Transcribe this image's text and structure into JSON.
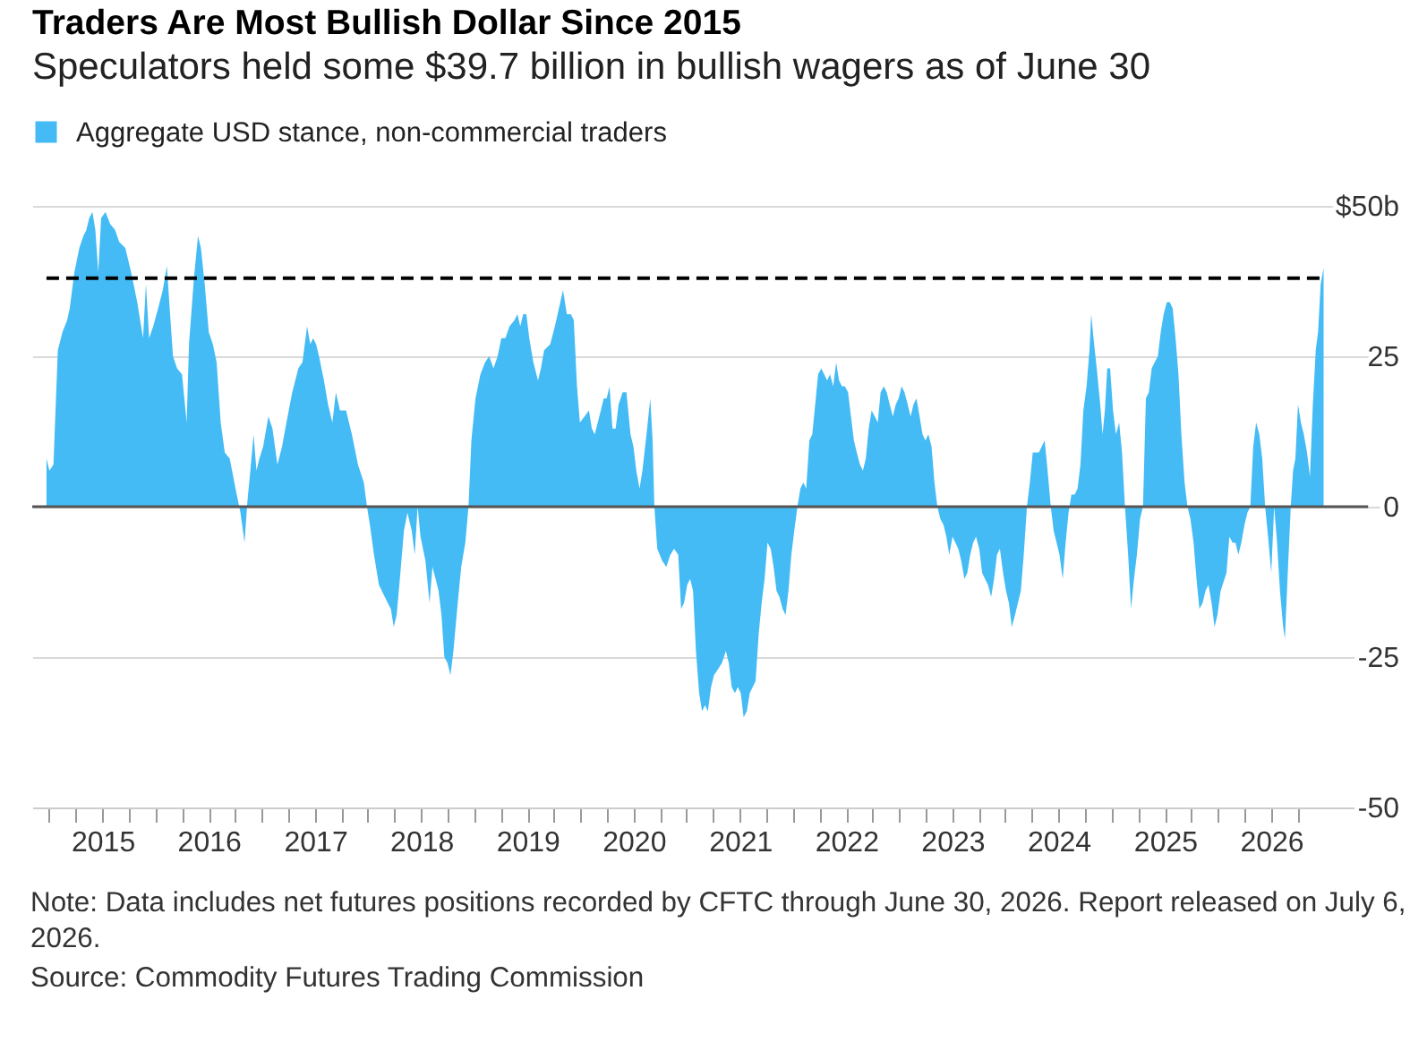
{
  "chart_data": {
    "type": "area",
    "title": "Traders Are Most Bullish Dollar Since 2015",
    "subtitle": "Speculators held some $39.7 billion in bullish wagers as of June 30",
    "annotations": [
      "Note: Data includes net futures positions recorded by CFTC through June 30, 2026. Report released on July 6, 2026.",
      "Source: Commodity Futures Trading Commission"
    ],
    "x": [
      "2014-06-22",
      "2014-07-02",
      "2014-07-16",
      "2014-07-31",
      "2014-08-16",
      "2014-09-01",
      "2014-09-10",
      "2014-09-26",
      "2014-10-13",
      "2014-10-27",
      "2014-11-06",
      "2014-11-16",
      "2014-11-27",
      "2014-12-07",
      "2014-12-17",
      "2014-12-27",
      "2015-01-11",
      "2015-01-27",
      "2015-02-13",
      "2015-02-27",
      "2015-03-20",
      "2015-04-09",
      "2015-04-30",
      "2015-05-20",
      "2015-05-30",
      "2015-06-10",
      "2015-06-24",
      "2015-07-11",
      "2015-07-27",
      "2015-08-10",
      "2015-08-21",
      "2015-08-31",
      "2015-09-14",
      "2015-10-01",
      "2015-10-17",
      "2015-10-25",
      "2015-11-11",
      "2015-11-25",
      "2015-12-05",
      "2015-12-18",
      "2016-01-01",
      "2016-01-15",
      "2016-01-28",
      "2016-02-11",
      "2016-02-25",
      "2016-03-13",
      "2016-04-02",
      "2016-04-19",
      "2016-05-03",
      "2016-05-13",
      "2016-05-23",
      "2016-06-03",
      "2016-06-13",
      "2016-06-23",
      "2016-07-06",
      "2016-07-24",
      "2016-08-07",
      "2016-08-24",
      "2016-09-09",
      "2016-09-24",
      "2016-10-14",
      "2016-11-04",
      "2016-11-18",
      "2016-12-04",
      "2016-12-15",
      "2016-12-25",
      "2017-01-04",
      "2017-01-14",
      "2017-01-31",
      "2017-02-14",
      "2017-03-01",
      "2017-03-13",
      "2017-03-27",
      "2017-04-17",
      "2017-05-07",
      "2017-05-28",
      "2017-06-17",
      "2017-06-28",
      "2017-07-08",
      "2017-07-22",
      "2017-08-08",
      "2017-08-28",
      "2017-09-18",
      "2017-09-28",
      "2017-10-08",
      "2017-10-19",
      "2017-11-02",
      "2017-11-14",
      "2017-11-29",
      "2017-12-09",
      "2017-12-19",
      "2017-12-29",
      "2018-01-15",
      "2018-01-29",
      "2018-02-08",
      "2018-02-19",
      "2018-03-01",
      "2018-03-11",
      "2018-03-21",
      "2018-04-01",
      "2018-04-11",
      "2018-04-21",
      "2018-05-06",
      "2018-05-18",
      "2018-06-01",
      "2018-06-12",
      "2018-06-22",
      "2018-07-06",
      "2018-07-23",
      "2018-08-08",
      "2018-08-22",
      "2018-09-06",
      "2018-09-20",
      "2018-10-03",
      "2018-10-17",
      "2018-10-31",
      "2018-11-17",
      "2018-11-27",
      "2018-12-07",
      "2018-12-17",
      "2018-12-28",
      "2019-01-07",
      "2019-01-21",
      "2019-02-06",
      "2019-02-16",
      "2019-02-27",
      "2019-03-20",
      "2019-04-05",
      "2019-04-19",
      "2019-05-03",
      "2019-05-16",
      "2019-05-30",
      "2019-06-09",
      "2019-06-20",
      "2019-06-30",
      "2019-07-16",
      "2019-07-31",
      "2019-08-10",
      "2019-08-20",
      "2019-09-10",
      "2019-09-20",
      "2019-09-30",
      "2019-10-10",
      "2019-10-20",
      "2019-10-31",
      "2019-11-10",
      "2019-11-24",
      "2019-12-07",
      "2019-12-21",
      "2019-12-31",
      "2020-01-10",
      "2020-01-21",
      "2020-01-31",
      "2020-02-14",
      "2020-02-27",
      "2020-03-06",
      "2020-03-12",
      "2020-03-22",
      "2020-04-08",
      "2020-04-22",
      "2020-05-06",
      "2020-05-19",
      "2020-06-02",
      "2020-06-12",
      "2020-06-22",
      "2020-07-03",
      "2020-07-13",
      "2020-07-23",
      "2020-08-02",
      "2020-08-13",
      "2020-08-23",
      "2020-09-02",
      "2020-09-12",
      "2020-09-23",
      "2020-10-03",
      "2020-10-17",
      "2020-10-30",
      "2020-11-13",
      "2020-11-23",
      "2020-12-03",
      "2020-12-14",
      "2020-12-24",
      "2021-01-03",
      "2021-01-13",
      "2021-01-24",
      "2021-02-03",
      "2021-02-13",
      "2021-02-23",
      "2021-03-06",
      "2021-03-16",
      "2021-03-26",
      "2021-04-05",
      "2021-04-16",
      "2021-04-26",
      "2021-05-06",
      "2021-05-16",
      "2021-05-27",
      "2021-06-06",
      "2021-06-16",
      "2021-06-26",
      "2021-07-06",
      "2021-07-17",
      "2021-07-27",
      "2021-08-06",
      "2021-08-16",
      "2021-08-27",
      "2021-09-06",
      "2021-09-16",
      "2021-09-26",
      "2021-10-07",
      "2021-10-17",
      "2021-10-27",
      "2021-11-06",
      "2021-11-17",
      "2021-11-27",
      "2021-12-07",
      "2021-12-17",
      "2021-12-27",
      "2022-01-07",
      "2022-01-17",
      "2022-01-27",
      "2022-02-06",
      "2022-02-17",
      "2022-02-27",
      "2022-03-09",
      "2022-03-19",
      "2022-03-29",
      "2022-04-09",
      "2022-04-19",
      "2022-04-29",
      "2022-05-10",
      "2022-05-20",
      "2022-05-30",
      "2022-06-10",
      "2022-06-20",
      "2022-06-30",
      "2022-07-10",
      "2022-07-20",
      "2022-07-31",
      "2022-08-10",
      "2022-08-20",
      "2022-08-30",
      "2022-09-10",
      "2022-09-20",
      "2022-09-30",
      "2022-10-10",
      "2022-10-21",
      "2022-10-31",
      "2022-11-10",
      "2022-11-20",
      "2022-12-01",
      "2022-12-11",
      "2022-12-21",
      "2023-01-01",
      "2023-01-11",
      "2023-01-21",
      "2023-01-31",
      "2023-02-11",
      "2023-02-21",
      "2023-03-03",
      "2023-03-13",
      "2023-03-23",
      "2023-04-03",
      "2023-04-13",
      "2023-04-23",
      "2023-05-03",
      "2023-05-14",
      "2023-05-24",
      "2023-06-03",
      "2023-06-13",
      "2023-06-24",
      "2023-07-04",
      "2023-07-14",
      "2023-07-24",
      "2023-08-04",
      "2023-08-14",
      "2023-08-24",
      "2023-09-03",
      "2023-09-14",
      "2023-09-24",
      "2023-10-04",
      "2023-10-14",
      "2023-10-25",
      "2023-11-04",
      "2023-11-14",
      "2023-11-24",
      "2023-12-05",
      "2023-12-15",
      "2023-12-25",
      "2024-01-04",
      "2024-01-15",
      "2024-01-25",
      "2024-02-04",
      "2024-02-14",
      "2024-02-25",
      "2024-03-06",
      "2024-03-16",
      "2024-03-26",
      "2024-04-06",
      "2024-04-16",
      "2024-04-22",
      "2024-05-02",
      "2024-05-11",
      "2024-05-23",
      "2024-05-31",
      "2024-06-08",
      "2024-06-16",
      "2024-06-26",
      "2024-07-06",
      "2024-07-16",
      "2024-07-27",
      "2024-08-06",
      "2024-08-16",
      "2024-08-27",
      "2024-09-06",
      "2024-09-16",
      "2024-09-26",
      "2024-10-07",
      "2024-10-17",
      "2024-10-27",
      "2024-11-06",
      "2024-11-16",
      "2024-11-26",
      "2024-12-07",
      "2024-12-17",
      "2024-12-27",
      "2025-01-07",
      "2025-01-17",
      "2025-01-27",
      "2025-02-06",
      "2025-02-16",
      "2025-02-26",
      "2025-03-09",
      "2025-03-19",
      "2025-03-29",
      "2025-04-09",
      "2025-04-19",
      "2025-04-29",
      "2025-05-10",
      "2025-05-20",
      "2025-05-30",
      "2025-06-10",
      "2025-06-20",
      "2025-06-30",
      "2025-07-11",
      "2025-07-31",
      "2025-08-10",
      "2025-08-21",
      "2025-08-31",
      "2025-09-10",
      "2025-09-20",
      "2025-10-01",
      "2025-10-11",
      "2025-10-21",
      "2025-10-31",
      "2025-11-10",
      "2025-11-21",
      "2025-12-01",
      "2025-12-11",
      "2025-12-21",
      "2026-01-01",
      "2026-01-11",
      "2026-01-21",
      "2026-01-31",
      "2026-02-11",
      "2026-02-17",
      "2026-02-25",
      "2026-03-09",
      "2026-03-17",
      "2026-03-25",
      "2026-04-03",
      "2026-04-13",
      "2026-04-23",
      "2026-05-04",
      "2026-05-14",
      "2026-05-24",
      "2026-06-03",
      "2026-06-11",
      "2026-06-20",
      "2026-06-30"
    ],
    "series": [
      {
        "name": "Aggregate USD stance, non-commercial traders",
        "color": "#44bbf5",
        "values": [
          8,
          6,
          7,
          26,
          29,
          31,
          33,
          39,
          43,
          45,
          46,
          48,
          49,
          46,
          39,
          48,
          49,
          47,
          46,
          44,
          43,
          39,
          34,
          28,
          37,
          28,
          30,
          33,
          36,
          40,
          32,
          25,
          23,
          22,
          14,
          27,
          38,
          45,
          43,
          37,
          29,
          27,
          24,
          14,
          9,
          8,
          3,
          -1,
          -6,
          1,
          6,
          12,
          6,
          8,
          10,
          15,
          13,
          7,
          10,
          14,
          19,
          23,
          24,
          30,
          27,
          28,
          27,
          25,
          21,
          17,
          14,
          19,
          16,
          16,
          12,
          7,
          4,
          0,
          -3,
          -8,
          -13,
          -15,
          -17,
          -20,
          -18,
          -12,
          -4,
          -1,
          -4,
          -8,
          0,
          -5,
          -9,
          -16,
          -10,
          -12,
          -14,
          -18,
          -25,
          -26,
          -28,
          -24,
          -16,
          -10,
          -6,
          0,
          11,
          18,
          22,
          24,
          25,
          23,
          25,
          28,
          28,
          30,
          31,
          32,
          30,
          32,
          32,
          28,
          24,
          21,
          23,
          26,
          27,
          30,
          33,
          36,
          32,
          32,
          31,
          20,
          14,
          15,
          16,
          13,
          12,
          16,
          18,
          18,
          20,
          13,
          13,
          17,
          19,
          19,
          12,
          10,
          6,
          3,
          6,
          12,
          18,
          11,
          0,
          -7,
          -9,
          -10,
          -8,
          -7,
          -8,
          -17,
          -16,
          -13,
          -12,
          -14,
          -24,
          -31,
          -34,
          -33,
          -34,
          -30,
          -28,
          -27,
          -26,
          -24,
          -26,
          -30,
          -31,
          -30,
          -31,
          -35,
          -34,
          -31,
          -30,
          -29,
          -21,
          -16,
          -12,
          -6,
          -7,
          -10,
          -14,
          -15,
          -17,
          -18,
          -14,
          -8,
          -4,
          0,
          3,
          4,
          3,
          11,
          12,
          17,
          22,
          23,
          22,
          21,
          22,
          20,
          24,
          21,
          20,
          20,
          19,
          15,
          11,
          9,
          7,
          6,
          8,
          13,
          16,
          15,
          14,
          19,
          20,
          19,
          17,
          15,
          17,
          18,
          20,
          19,
          17,
          15,
          17,
          18,
          15,
          12,
          11,
          12,
          10,
          4,
          0,
          -2,
          -3,
          -5,
          -8,
          -5,
          -6,
          -7,
          -9,
          -12,
          -11,
          -8,
          -6,
          -5,
          -7,
          -11,
          -12,
          -13,
          -15,
          -12,
          -8,
          -7,
          -11,
          -14,
          -16,
          -20,
          -18,
          -16,
          -14,
          -8,
          0,
          4,
          9,
          9,
          9,
          10,
          11,
          6,
          0,
          -4,
          -6,
          -8,
          -12,
          -6,
          -1,
          2,
          2,
          3,
          7,
          16,
          20,
          26,
          32,
          27,
          23,
          17,
          12,
          16,
          23,
          23,
          16,
          12,
          14,
          9,
          0,
          -8,
          -17,
          -12,
          -8,
          -2,
          0,
          18,
          19,
          23,
          24,
          25,
          29,
          32,
          34,
          34,
          33,
          28,
          22,
          12,
          4,
          0,
          -2,
          -6,
          -12,
          -17,
          -16,
          -14,
          -13,
          -16,
          -20,
          -18,
          -14,
          -11,
          -5,
          -6,
          -6,
          -8,
          -6,
          -3,
          -1,
          0,
          10,
          14,
          12,
          8,
          0,
          -5,
          -11,
          0,
          -6,
          -14,
          -20,
          -22,
          -13,
          0,
          6,
          8,
          17,
          14,
          12,
          9,
          5,
          17,
          26,
          29,
          37,
          39.7
        ]
      }
    ],
    "xlim": [
      "2014-05-04",
      "2027-03-14"
    ],
    "xticks": [
      {
        "value": "2014-07",
        "label": null
      },
      {
        "value": "2014-10",
        "label": null
      },
      "2015",
      {
        "value": "2015-04",
        "label": null
      },
      {
        "value": "2015-07",
        "label": null
      },
      {
        "value": "2015-10",
        "label": null
      },
      "2016",
      {
        "value": "2016-04",
        "label": null
      },
      {
        "value": "2016-07",
        "label": null
      },
      {
        "value": "2016-10",
        "label": null
      },
      "2017",
      {
        "value": "2017-04",
        "label": null
      },
      {
        "value": "2017-07",
        "label": null
      },
      {
        "value": "2017-10",
        "label": null
      },
      "2018",
      {
        "value": "2018-04",
        "label": null
      },
      {
        "value": "2018-07",
        "label": null
      },
      {
        "value": "2018-10",
        "label": null
      },
      "2019",
      {
        "value": "2019-04",
        "label": null
      },
      {
        "value": "2019-07",
        "label": null
      },
      {
        "value": "2019-10",
        "label": null
      },
      "2020",
      {
        "value": "2020-04",
        "label": null
      },
      {
        "value": "2020-07",
        "label": null
      },
      {
        "value": "2020-10",
        "label": null
      },
      "2021",
      {
        "value": "2021-04",
        "label": null
      },
      {
        "value": "2021-07",
        "label": null
      },
      {
        "value": "2021-10",
        "label": null
      },
      "2022",
      {
        "value": "2022-04",
        "label": null
      },
      {
        "value": "2022-07",
        "label": null
      },
      {
        "value": "2022-10",
        "label": null
      },
      "2023",
      {
        "value": "2023-04",
        "label": null
      },
      {
        "value": "2023-07",
        "label": null
      },
      {
        "value": "2023-10",
        "label": null
      },
      "2024",
      {
        "value": "2024-04",
        "label": null
      },
      {
        "value": "2024-07",
        "label": null
      },
      {
        "value": "2024-10",
        "label": null
      },
      "2025",
      {
        "value": "2025-04",
        "label": null
      },
      {
        "value": "2025-07",
        "label": null
      },
      {
        "value": "2025-10",
        "label": null
      },
      "2026",
      {
        "value": "2026-04",
        "label": null
      }
    ],
    "ylim": [
      -50,
      50
    ],
    "yticks": [
      -50,
      -25,
      0,
      25,
      {
        "value": 50,
        "label": "$50b"
      }
    ],
    "ref_lines": [
      {
        "axis": "y",
        "value": 0,
        "color": "#555555"
      },
      {
        "axis": "y",
        "value": 38,
        "color": "#000000",
        "line_style": "dashed"
      }
    ],
    "grid": "y",
    "legend": "top left"
  }
}
